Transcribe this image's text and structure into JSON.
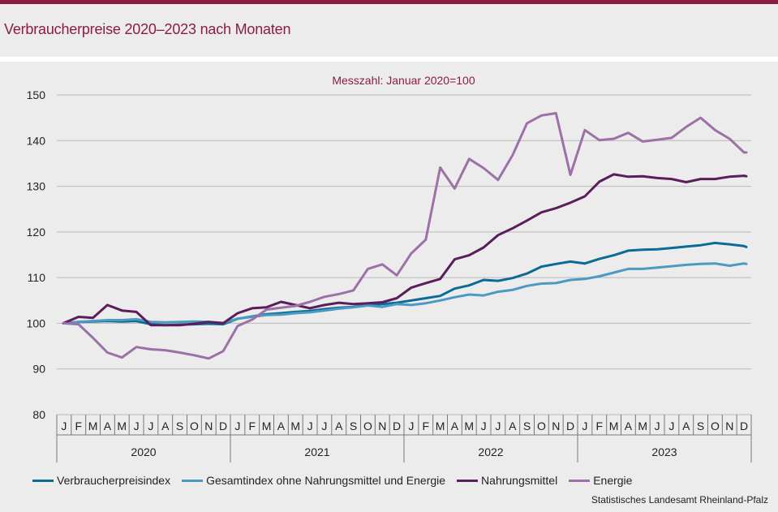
{
  "header": {
    "title": "Verbraucherpreise 2020–2023 nach Monaten"
  },
  "chart_data": {
    "type": "line",
    "subtitle": "Messzahl:  Januar  2020=100",
    "ylim": [
      80,
      150
    ],
    "y_ticks": [
      "80",
      "90",
      "100",
      "110",
      "120",
      "130",
      "140",
      "150"
    ],
    "grid": "horizontal",
    "legend_position": "bottom",
    "month_labels": [
      "J",
      "F",
      "M",
      "A",
      "M",
      "J",
      "J",
      "A",
      "S",
      "O",
      "N",
      "D"
    ],
    "years": [
      "2020",
      "2021",
      "2022",
      "2023"
    ],
    "series": [
      {
        "name": "Verbraucherpreisindex",
        "color": "#0b6b94",
        "values": [
          100.0,
          100.3,
          100.4,
          100.5,
          100.4,
          100.5,
          99.8,
          99.6,
          99.7,
          99.8,
          99.9,
          99.8,
          101.0,
          101.5,
          102.0,
          102.2,
          102.5,
          102.7,
          103.1,
          103.4,
          103.6,
          104.0,
          104.2,
          104.5,
          105.0,
          105.5,
          106.0,
          107.6,
          108.3,
          109.5,
          109.3,
          109.9,
          110.9,
          112.4,
          113.0,
          113.5,
          113.1,
          114.1,
          114.9,
          115.9,
          116.1,
          116.2,
          116.5,
          116.8,
          117.1,
          117.6,
          117.3,
          116.9,
          116.7
        ]
      },
      {
        "name": "Gesamtindex ohne Nahrungsmittel und Energie",
        "color": "#4a9ac4",
        "values": [
          100.0,
          100.3,
          100.5,
          100.7,
          100.7,
          100.9,
          100.3,
          100.2,
          100.3,
          100.4,
          100.3,
          100.1,
          101.0,
          101.4,
          101.8,
          101.9,
          102.2,
          102.4,
          102.8,
          103.2,
          103.5,
          103.9,
          103.6,
          104.2,
          104.0,
          104.4,
          105.0,
          105.7,
          106.3,
          106.1,
          106.9,
          107.3,
          108.2,
          108.7,
          108.8,
          109.5,
          109.7,
          110.3,
          111.1,
          111.9,
          111.9,
          112.2,
          112.5,
          112.8,
          113.0,
          113.1,
          112.6,
          113.1,
          113.0
        ]
      },
      {
        "name": "Nahrungsmittel",
        "color": "#5a1e5c",
        "values": [
          100.0,
          101.4,
          101.2,
          104.0,
          102.8,
          102.5,
          99.6,
          99.6,
          99.6,
          99.9,
          100.3,
          100.0,
          102.2,
          103.3,
          103.5,
          104.7,
          104.0,
          103.3,
          104.0,
          104.5,
          104.2,
          104.4,
          104.6,
          105.5,
          107.8,
          108.8,
          109.7,
          114.0,
          114.9,
          116.6,
          119.3,
          120.8,
          122.5,
          124.3,
          125.2,
          126.4,
          127.8,
          131.0,
          132.6,
          132.1,
          132.2,
          131.8,
          131.6,
          130.9,
          131.6,
          131.6,
          132.1,
          132.3,
          132.2
        ]
      },
      {
        "name": "Energie",
        "color": "#9b71a8",
        "values": [
          100.0,
          99.8,
          96.8,
          93.6,
          92.5,
          94.8,
          94.3,
          94.1,
          93.6,
          93.0,
          92.3,
          93.9,
          99.4,
          100.8,
          103.0,
          103.4,
          103.8,
          104.7,
          105.8,
          106.4,
          107.2,
          111.9,
          112.9,
          110.5,
          115.3,
          118.3,
          134.1,
          129.5,
          136.0,
          134.0,
          131.4,
          136.8,
          143.8,
          145.5,
          146.0,
          132.5,
          142.3,
          140.1,
          140.4,
          141.7,
          139.8,
          140.2,
          140.6,
          143.0,
          145.0,
          142.3,
          140.4,
          137.4,
          137.4
        ]
      }
    ]
  },
  "footer": {
    "source": "Statistisches Landesamt  Rheinland-Pfalz"
  }
}
